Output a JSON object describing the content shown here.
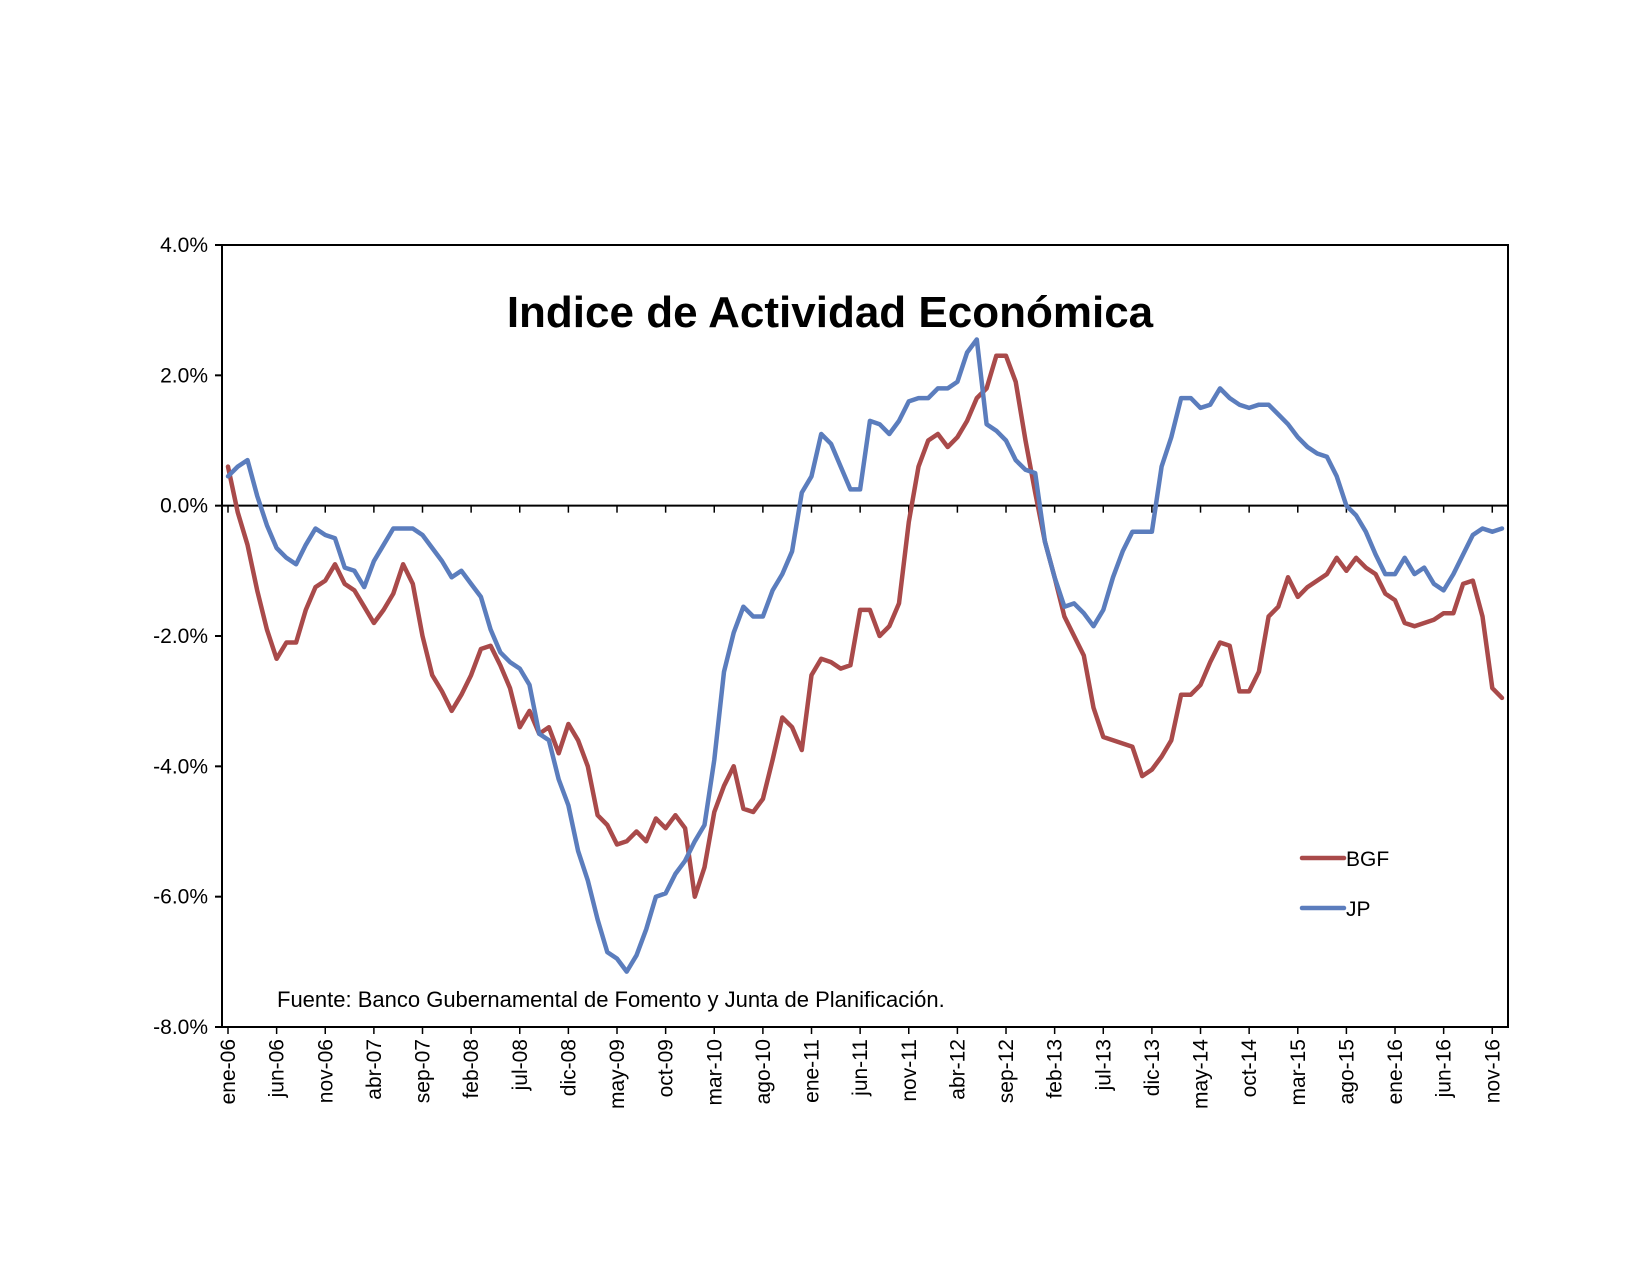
{
  "chart_data": {
    "type": "line",
    "title": "Indice de Actividad Económica",
    "annotation": "Fuente: Banco Gubernamental de Fomento y Junta de Planificación.",
    "xlabel": "",
    "ylabel": "",
    "ylim": [
      -8,
      4
    ],
    "y_ticks": [
      "4.0%",
      "2.0%",
      "0.0%",
      "-2.0%",
      "-4.0%",
      "-6.0%",
      "-8.0%"
    ],
    "y_tick_values": [
      4,
      2,
      0,
      -2,
      -4,
      -6,
      -8
    ],
    "x_tick_labels": [
      "ene-06",
      "jun-06",
      "nov-06",
      "abr-07",
      "sep-07",
      "feb-08",
      "jul-08",
      "dic-08",
      "may-09",
      "oct-09",
      "mar-10",
      "ago-10",
      "ene-11",
      "jun-11",
      "nov-11",
      "abr-12",
      "sep-12",
      "feb-13",
      "jul-13",
      "dic-13",
      "may-14",
      "oct-14",
      "mar-15",
      "ago-15",
      "ene-16",
      "jun-16",
      "nov-16"
    ],
    "x_start": "ene-06",
    "x_end": "dic-16",
    "grid": false,
    "legend_placement": "bottom-right",
    "series": [
      {
        "name": "BGF",
        "color": "#A94A4A",
        "values": [
          0.6,
          -0.1,
          -0.6,
          -1.3,
          -1.9,
          -2.35,
          -2.1,
          -2.1,
          -1.6,
          -1.25,
          -1.15,
          -0.9,
          -1.2,
          -1.3,
          -1.55,
          -1.8,
          -1.6,
          -1.35,
          -0.9,
          -1.2,
          -2.0,
          -2.6,
          -2.85,
          -3.15,
          -2.9,
          -2.6,
          -2.2,
          -2.15,
          -2.45,
          -2.8,
          -3.4,
          -3.15,
          -3.5,
          -3.4,
          -3.8,
          -3.35,
          -3.6,
          -4.0,
          -4.75,
          -4.9,
          -5.2,
          -5.15,
          -5.0,
          -5.15,
          -4.8,
          -4.95,
          -4.75,
          -4.95,
          -6.0,
          -5.55,
          -4.7,
          -4.3,
          -4.0,
          -4.65,
          -4.7,
          -4.5,
          -3.9,
          -3.25,
          -3.4,
          -3.75,
          -2.6,
          -2.35,
          -2.4,
          -2.5,
          -2.45,
          -1.6,
          -1.6,
          -2.0,
          -1.85,
          -1.5,
          -0.25,
          0.6,
          1.0,
          1.1,
          0.9,
          1.05,
          1.3,
          1.65,
          1.8,
          2.3,
          2.3,
          1.9,
          1.0,
          0.2,
          -0.55,
          -1.1,
          -1.7,
          -2.0,
          -2.3,
          -3.1,
          -3.55,
          -3.6,
          -3.65,
          -3.7,
          -4.15,
          -4.05,
          -3.85,
          -3.6,
          -2.9,
          -2.9,
          -2.75,
          -2.4,
          -2.1,
          -2.15,
          -2.85,
          -2.85,
          -2.55,
          -1.7,
          -1.55,
          -1.1,
          -1.4,
          -1.25,
          -1.15,
          -1.05,
          -0.8,
          -1.0,
          -0.8,
          -0.95,
          -1.05,
          -1.35,
          -1.45,
          -1.8,
          -1.85,
          -1.8,
          -1.75,
          -1.65,
          -1.65,
          -1.2,
          -1.15,
          -1.7,
          -2.8,
          -2.95
        ]
      },
      {
        "name": "JP",
        "color": "#5B7DBD",
        "values": [
          0.45,
          0.6,
          0.7,
          0.15,
          -0.3,
          -0.65,
          -0.8,
          -0.9,
          -0.6,
          -0.35,
          -0.45,
          -0.5,
          -0.95,
          -1.0,
          -1.25,
          -0.85,
          -0.6,
          -0.35,
          -0.35,
          -0.35,
          -0.45,
          -0.65,
          -0.85,
          -1.1,
          -1.0,
          -1.2,
          -1.4,
          -1.9,
          -2.25,
          -2.4,
          -2.5,
          -2.75,
          -3.5,
          -3.6,
          -4.2,
          -4.6,
          -5.3,
          -5.75,
          -6.35,
          -6.85,
          -6.95,
          -7.15,
          -6.9,
          -6.5,
          -6.0,
          -5.95,
          -5.65,
          -5.45,
          -5.15,
          -4.9,
          -3.9,
          -2.55,
          -1.95,
          -1.55,
          -1.7,
          -1.7,
          -1.3,
          -1.05,
          -0.7,
          0.2,
          0.45,
          1.1,
          0.95,
          0.6,
          0.25,
          0.25,
          1.3,
          1.25,
          1.1,
          1.3,
          1.6,
          1.65,
          1.65,
          1.8,
          1.8,
          1.9,
          2.35,
          2.55,
          1.25,
          1.15,
          1.0,
          0.7,
          0.55,
          0.5,
          -0.55,
          -1.1,
          -1.55,
          -1.5,
          -1.65,
          -1.85,
          -1.6,
          -1.1,
          -0.7,
          -0.4,
          -0.4,
          -0.4,
          0.6,
          1.05,
          1.65,
          1.65,
          1.5,
          1.55,
          1.8,
          1.65,
          1.55,
          1.5,
          1.55,
          1.55,
          1.4,
          1.25,
          1.05,
          0.9,
          0.8,
          0.75,
          0.45,
          0.0,
          -0.15,
          -0.4,
          -0.75,
          -1.05,
          -1.05,
          -0.8,
          -1.05,
          -0.95,
          -1.2,
          -1.3,
          -1.05,
          -0.75,
          -0.45,
          -0.35,
          -0.4,
          -0.35
        ]
      }
    ]
  }
}
